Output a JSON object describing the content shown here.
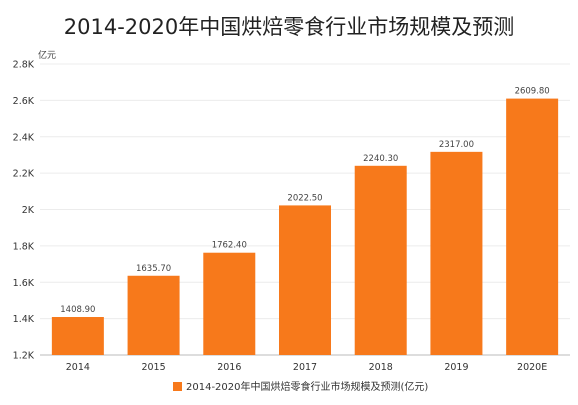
{
  "chart_data": {
    "type": "bar",
    "title": "2014-2020年中国烘焙零食行业市场规模及预测",
    "unit_label": "亿元",
    "categories": [
      "2014",
      "2015",
      "2016",
      "2017",
      "2018",
      "2019",
      "2020E"
    ],
    "series": [
      {
        "name": "2014-2020年中国烘焙零食行业市场规模及预测(亿元)",
        "values": [
          1408.9,
          1635.7,
          1762.4,
          2022.5,
          2240.3,
          2317.0,
          2609.8
        ],
        "labels": [
          "1408.90",
          "1635.70",
          "1762.40",
          "2022.50",
          "2240.30",
          "2317.00",
          "2609.80"
        ],
        "color": "#f7791b"
      }
    ],
    "ylim": [
      1200,
      2800
    ],
    "yticks": [
      1200,
      1400,
      1600,
      1800,
      2000,
      2200,
      2400,
      2600,
      2800
    ],
    "ytick_labels": [
      "1.2K",
      "1.4K",
      "1.6K",
      "1.8K",
      "2K",
      "2.2K",
      "2.4K",
      "2.6K",
      "2.8K"
    ],
    "grid": true,
    "legend_position": "bottom"
  }
}
